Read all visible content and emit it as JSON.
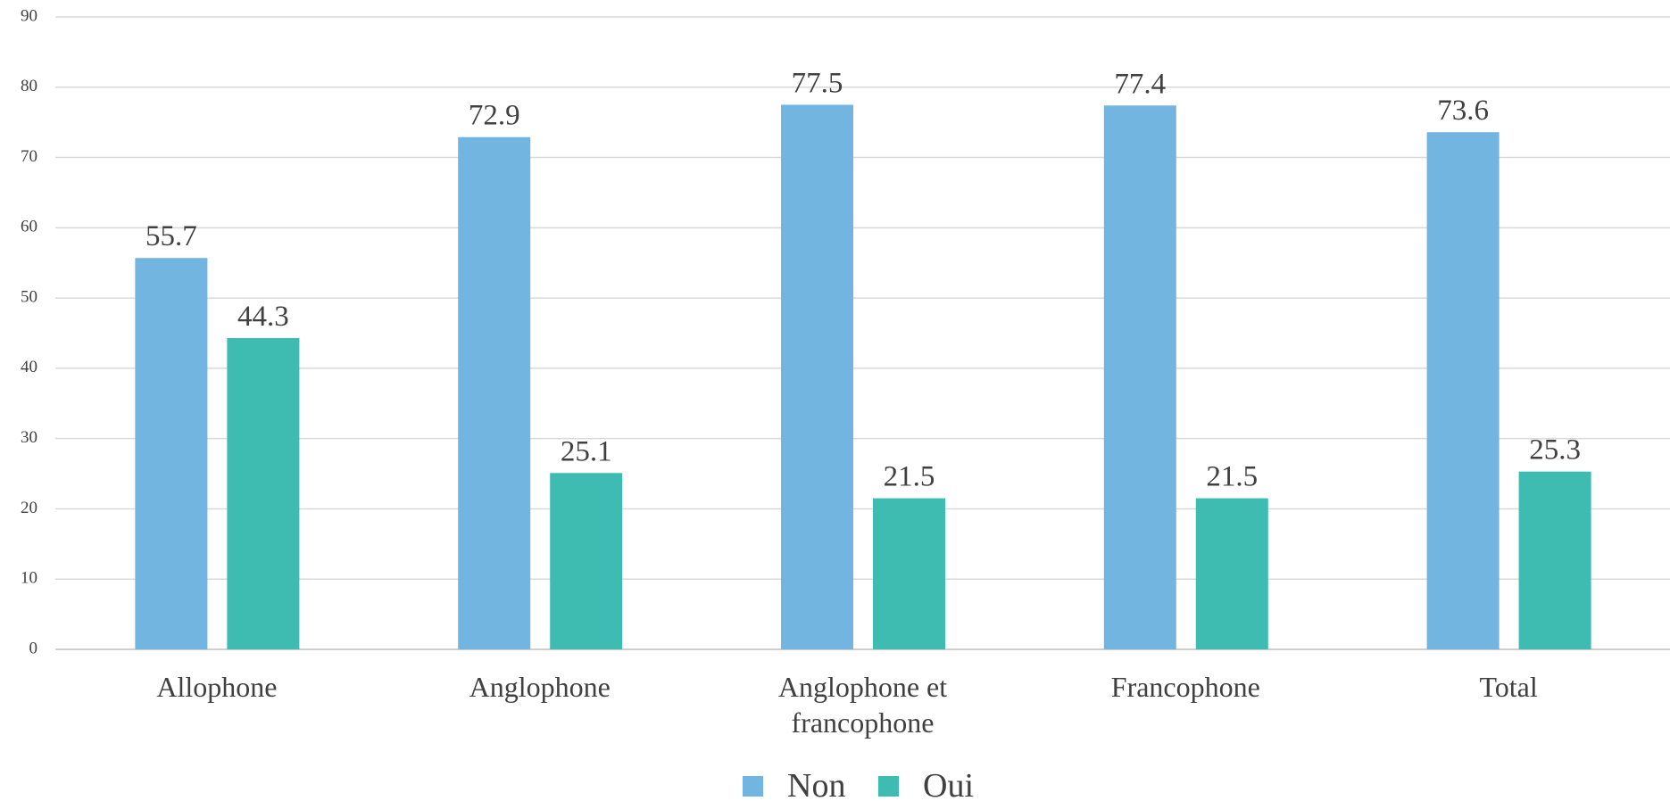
{
  "chart_data": {
    "type": "bar",
    "categories": [
      "Allophone",
      "Anglophone",
      "Anglophone et francophone",
      "Francophone",
      "Total"
    ],
    "series": [
      {
        "name": "Non",
        "color": "#72b5e1",
        "values": [
          55.7,
          72.9,
          77.5,
          77.4,
          73.6
        ]
      },
      {
        "name": "Oui",
        "color": "#3fbcb2",
        "values": [
          44.3,
          25.1,
          21.5,
          21.5,
          25.3
        ]
      }
    ],
    "ylim": [
      0,
      90
    ],
    "yticks": [
      0,
      10,
      20,
      30,
      40,
      50,
      60,
      70,
      80,
      90
    ],
    "grid": true,
    "legend": "bottom"
  }
}
